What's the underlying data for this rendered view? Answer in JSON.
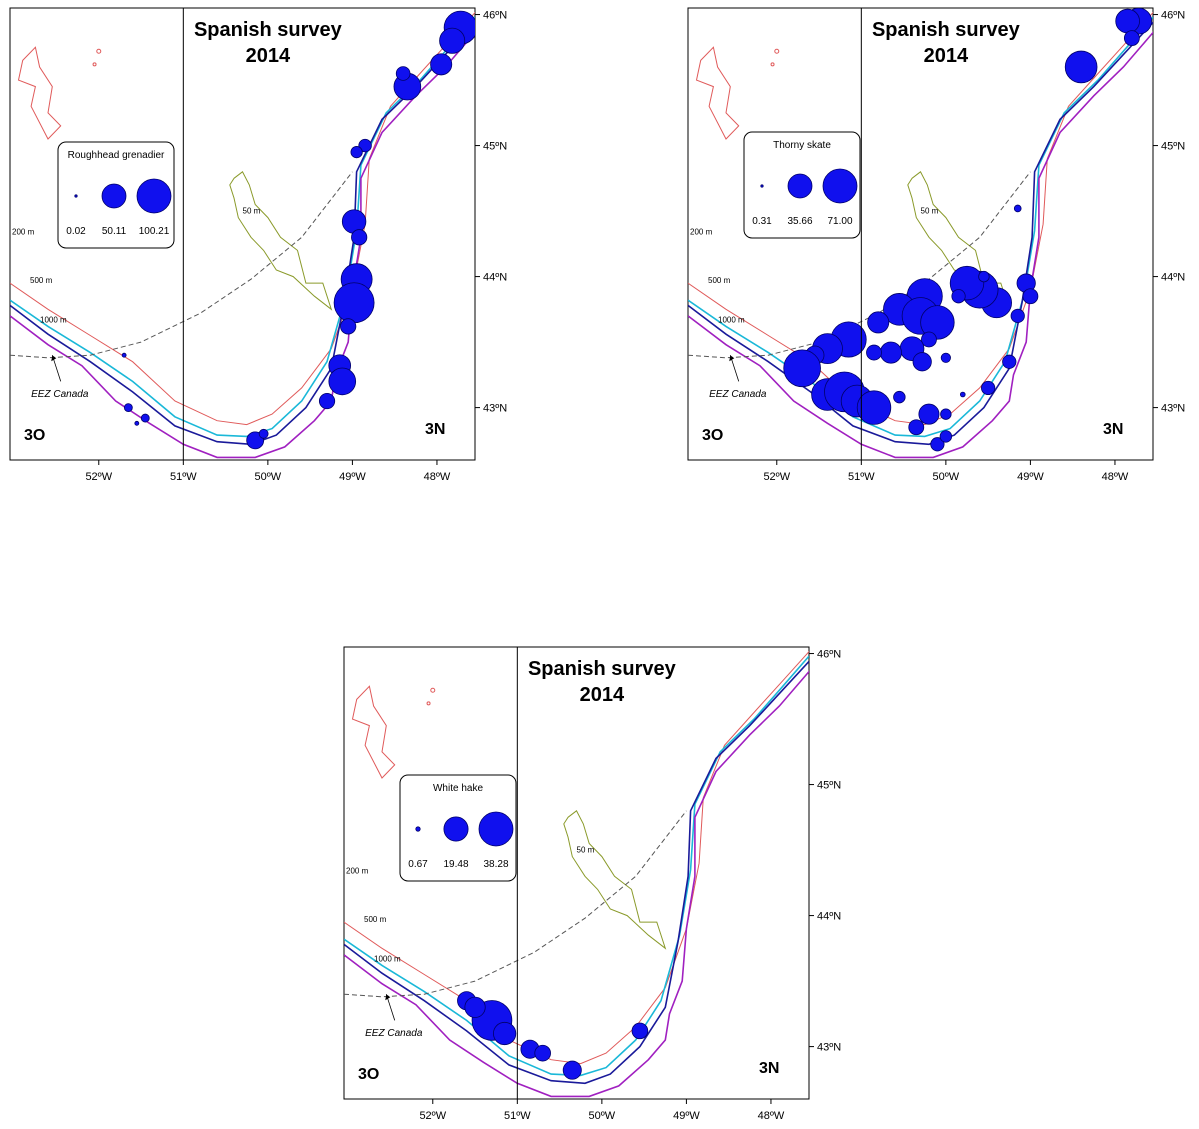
{
  "maps": [
    {
      "id": "map-roughhead-grenadier",
      "title_line1": "Spanish survey",
      "title_line2": "2014",
      "species": "Roughhead grenadier",
      "legend_values": [
        "0.02",
        "50.11",
        "100.21"
      ],
      "zone_left": "3O",
      "zone_right": "3N",
      "lon_labels": [
        "52ºW",
        "51ºW",
        "50ºW",
        "49ºW",
        "48ºW"
      ],
      "lat_labels": [
        "46ºN",
        "45ºN",
        "44ºN",
        "43ºN"
      ],
      "depth_labels": [
        "200 m",
        "500 m",
        "1000 m",
        "50 m"
      ],
      "eez_label": "EEZ Canada",
      "catches": [
        {
          "lon": -47.72,
          "lat": 45.9,
          "value": 68
        },
        {
          "lon": -47.82,
          "lat": 45.8,
          "value": 40
        },
        {
          "lon": -47.95,
          "lat": 45.62,
          "value": 28
        },
        {
          "lon": -48.35,
          "lat": 45.45,
          "value": 45
        },
        {
          "lon": -48.4,
          "lat": 45.55,
          "value": 12
        },
        {
          "lon": -48.85,
          "lat": 45.0,
          "value": 10
        },
        {
          "lon": -48.95,
          "lat": 44.95,
          "value": 8
        },
        {
          "lon": -48.98,
          "lat": 44.42,
          "value": 35
        },
        {
          "lon": -48.92,
          "lat": 44.3,
          "value": 15
        },
        {
          "lon": -48.95,
          "lat": 43.98,
          "value": 60
        },
        {
          "lon": -48.98,
          "lat": 43.8,
          "value": 100
        },
        {
          "lon": -49.05,
          "lat": 43.62,
          "value": 15
        },
        {
          "lon": -49.15,
          "lat": 43.32,
          "value": 30
        },
        {
          "lon": -49.12,
          "lat": 43.2,
          "value": 45
        },
        {
          "lon": -49.3,
          "lat": 43.05,
          "value": 15
        },
        {
          "lon": -50.15,
          "lat": 42.75,
          "value": 18
        },
        {
          "lon": -50.05,
          "lat": 42.8,
          "value": 5
        },
        {
          "lon": -51.65,
          "lat": 43.0,
          "value": 4
        },
        {
          "lon": -51.45,
          "lat": 42.92,
          "value": 4
        },
        {
          "lon": -51.55,
          "lat": 42.88,
          "value": 1
        },
        {
          "lon": -51.7,
          "lat": 43.4,
          "value": 1
        }
      ]
    },
    {
      "id": "map-thorny-skate",
      "title_line1": "Spanish survey",
      "title_line2": "2014",
      "species": "Thorny skate",
      "legend_values": [
        "0.31",
        "35.66",
        "71.00"
      ],
      "zone_left": "3O",
      "zone_right": "3N",
      "lon_labels": [
        "52ºW",
        "51ºW",
        "50ºW",
        "49ºW",
        "48ºW"
      ],
      "lat_labels": [
        "46ºN",
        "45ºN",
        "44ºN",
        "43ºN"
      ],
      "depth_labels": [
        "200 m",
        "500 m",
        "1000 m",
        "50 m"
      ],
      "eez_label": "EEZ Canada",
      "catches": [
        {
          "lon": -47.72,
          "lat": 45.95,
          "value": 30
        },
        {
          "lon": -47.85,
          "lat": 45.95,
          "value": 25
        },
        {
          "lon": -47.8,
          "lat": 45.82,
          "value": 10
        },
        {
          "lon": -48.4,
          "lat": 45.6,
          "value": 45
        },
        {
          "lon": -49.15,
          "lat": 44.52,
          "value": 2
        },
        {
          "lon": -49.05,
          "lat": 43.95,
          "value": 15
        },
        {
          "lon": -49.0,
          "lat": 43.85,
          "value": 10
        },
        {
          "lon": -49.15,
          "lat": 43.7,
          "value": 8
        },
        {
          "lon": -49.4,
          "lat": 43.8,
          "value": 40
        },
        {
          "lon": -49.6,
          "lat": 43.9,
          "value": 60
        },
        {
          "lon": -49.75,
          "lat": 43.95,
          "value": 50
        },
        {
          "lon": -49.55,
          "lat": 44.0,
          "value": 5
        },
        {
          "lon": -49.25,
          "lat": 43.35,
          "value": 8
        },
        {
          "lon": -49.5,
          "lat": 43.15,
          "value": 8
        },
        {
          "lon": -50.25,
          "lat": 43.85,
          "value": 55
        },
        {
          "lon": -50.55,
          "lat": 43.75,
          "value": 45
        },
        {
          "lon": -50.3,
          "lat": 43.7,
          "value": 60
        },
        {
          "lon": -50.1,
          "lat": 43.65,
          "value": 50
        },
        {
          "lon": -49.85,
          "lat": 43.85,
          "value": 8
        },
        {
          "lon": -50.8,
          "lat": 43.65,
          "value": 20
        },
        {
          "lon": -50.2,
          "lat": 43.52,
          "value": 10
        },
        {
          "lon": -50.4,
          "lat": 43.45,
          "value": 25
        },
        {
          "lon": -50.65,
          "lat": 43.42,
          "value": 20
        },
        {
          "lon": -50.85,
          "lat": 43.42,
          "value": 10
        },
        {
          "lon": -50.28,
          "lat": 43.35,
          "value": 15
        },
        {
          "lon": -50.0,
          "lat": 43.38,
          "value": 4
        },
        {
          "lon": -51.15,
          "lat": 43.52,
          "value": 55
        },
        {
          "lon": -51.4,
          "lat": 43.45,
          "value": 40
        },
        {
          "lon": -51.55,
          "lat": 43.4,
          "value": 15
        },
        {
          "lon": -51.7,
          "lat": 43.3,
          "value": 60
        },
        {
          "lon": -51.4,
          "lat": 43.1,
          "value": 45
        },
        {
          "lon": -51.2,
          "lat": 43.12,
          "value": 70
        },
        {
          "lon": -51.05,
          "lat": 43.05,
          "value": 45
        },
        {
          "lon": -50.85,
          "lat": 43.0,
          "value": 50
        },
        {
          "lon": -50.55,
          "lat": 43.08,
          "value": 6
        },
        {
          "lon": -50.2,
          "lat": 42.95,
          "value": 18
        },
        {
          "lon": -50.35,
          "lat": 42.85,
          "value": 10
        },
        {
          "lon": -50.1,
          "lat": 42.72,
          "value": 8
        },
        {
          "lon": -50.0,
          "lat": 42.78,
          "value": 6
        },
        {
          "lon": -50.0,
          "lat": 42.95,
          "value": 5
        },
        {
          "lon": -49.8,
          "lat": 43.1,
          "value": 1
        }
      ]
    },
    {
      "id": "map-white-hake",
      "title_line1": "Spanish survey",
      "title_line2": "2014",
      "species": "White hake",
      "legend_values": [
        "0.67",
        "19.48",
        "38.28"
      ],
      "zone_left": "3O",
      "zone_right": "3N",
      "lon_labels": [
        "52ºW",
        "51ºW",
        "50ºW",
        "49ºW",
        "48ºW"
      ],
      "lat_labels": [
        "46ºN",
        "45ºN",
        "44ºN",
        "43ºN"
      ],
      "depth_labels": [
        "200 m",
        "500 m",
        "1000 m",
        "50 m"
      ],
      "eez_label": "EEZ Canada",
      "catches": [
        {
          "lon": -51.3,
          "lat": 43.2,
          "value": 38
        },
        {
          "lon": -51.15,
          "lat": 43.1,
          "value": 12
        },
        {
          "lon": -51.6,
          "lat": 43.35,
          "value": 8
        },
        {
          "lon": -51.5,
          "lat": 43.3,
          "value": 10
        },
        {
          "lon": -50.85,
          "lat": 42.98,
          "value": 8
        },
        {
          "lon": -50.7,
          "lat": 42.95,
          "value": 6
        },
        {
          "lon": -50.35,
          "lat": 42.82,
          "value": 8
        },
        {
          "lon": -49.55,
          "lat": 43.12,
          "value": 6
        }
      ]
    }
  ]
}
